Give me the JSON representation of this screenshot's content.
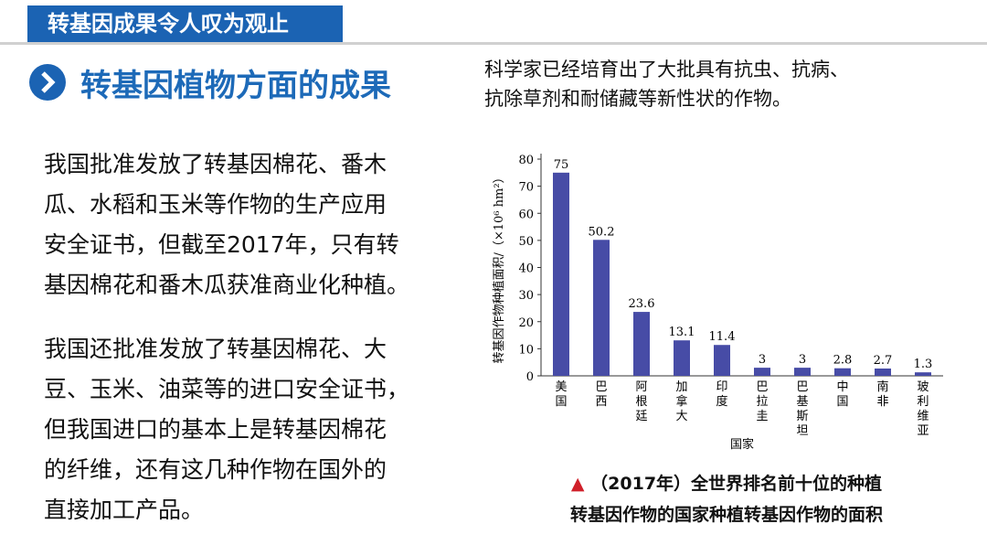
{
  "header": {
    "title": "转基因成果令人叹为观止"
  },
  "section": {
    "title": "转基因植物方面的成果"
  },
  "paragraphs": [
    [
      "我国批准发放了转基因棉花、番木",
      "瓜、水稻和玉米等作物的生产应用",
      "安全证书，但截至2017年，只有转",
      "基因棉花和番木瓜获准商业化种植。"
    ],
    [
      "我国还批准发放了转基因棉花、大",
      "豆、玉米、油菜等的进口安全证书，",
      "但我国进口的基本上是转基因棉花",
      "的纤维，还有这几种作物在国外的",
      "直接加工产品。"
    ]
  ],
  "intro": [
    "科学家已经培育出了大批具有抗虫、抗病、",
    "抗除草剂和耐储藏等新性状的作物。"
  ],
  "caption": {
    "marker": "▲",
    "lines": [
      "（2017年）全世界排名前十位的种植",
      "转基因作物的国家种植转基因作物的面积"
    ]
  },
  "chart_data": {
    "type": "bar",
    "categories": [
      "美国",
      "巴西",
      "阿根廷",
      "加拿大",
      "印度",
      "巴拉圭",
      "巴基斯坦",
      "中国",
      "南非",
      "玻利维亚"
    ],
    "values": [
      75,
      50.2,
      23.6,
      13.1,
      11.4,
      3,
      3,
      2.8,
      2.7,
      1.3
    ],
    "color": "#474ca6",
    "x_label": "国家",
    "y_label": "转基因作物种植面积/（×10⁶ hm²）",
    "ylim": [
      0,
      80
    ],
    "yticks": [
      0,
      10,
      20,
      30,
      40,
      50,
      60,
      70,
      80
    ]
  }
}
